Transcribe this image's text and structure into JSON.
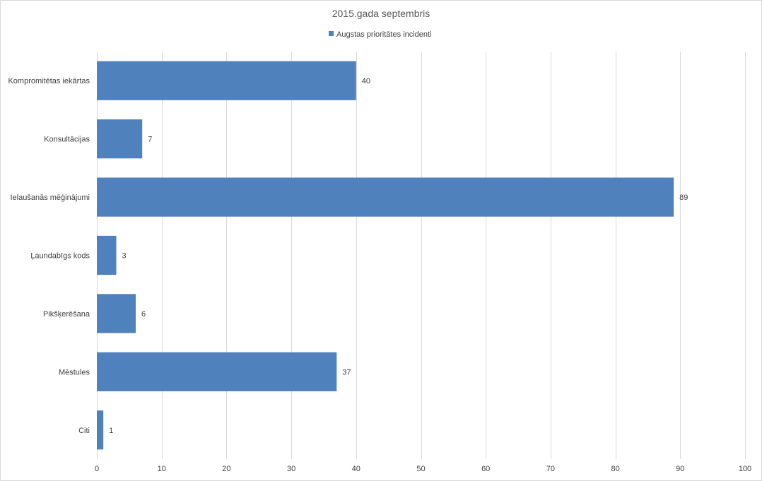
{
  "chart_data": {
    "type": "bar",
    "orientation": "horizontal",
    "title": "2015.gada septembris",
    "categories": [
      "Kompromitētas iekārtas",
      "Konsultācijas",
      "Ielaušanās mēģinājumi",
      "Ļaundabīgs kods",
      "Pikšķerēšana",
      "Mēstules",
      "Citi"
    ],
    "series": [
      {
        "name": "Augstas prioritātes incidenti",
        "values": [
          40,
          7,
          89,
          3,
          6,
          37,
          1
        ],
        "color": "#4F81BD"
      }
    ],
    "xlim": [
      0,
      100
    ],
    "xticks": [
      0,
      10,
      20,
      30,
      40,
      50,
      60,
      70,
      80,
      90,
      100
    ],
    "grid": true,
    "legend": "top",
    "data_labels": true
  }
}
